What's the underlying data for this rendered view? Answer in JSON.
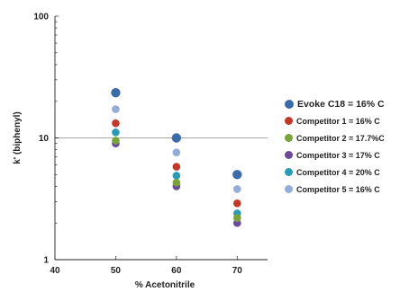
{
  "chart_data": {
    "type": "scatter",
    "xlabel": "% Acetonitrile",
    "ylabel": "k' (biphenyl)",
    "x_ticks": [
      "40",
      "50",
      "60",
      "70"
    ],
    "y_ticks": [
      "1",
      "10",
      "100"
    ],
    "xlim": [
      40,
      75
    ],
    "ylim": [
      1,
      100
    ],
    "y_scale": "log",
    "grid": "horizontal at 10",
    "legend_position": "right",
    "series": [
      {
        "name": "Evoke C18 = 16% C",
        "color": "#3c6ca8",
        "x": [
          50,
          60,
          70
        ],
        "y": [
          23.5,
          10.0,
          5.0
        ]
      },
      {
        "name": "Competitor 1 = 16% C",
        "color": "#c0392b",
        "x": [
          50,
          60,
          70
        ],
        "y": [
          13.2,
          5.8,
          2.9
        ]
      },
      {
        "name": "Competitor 2 = 17.7%C",
        "color": "#7aa23a",
        "x": [
          50,
          60,
          70
        ],
        "y": [
          9.5,
          4.3,
          2.2
        ]
      },
      {
        "name": "Competitor 3 = 17% C",
        "color": "#6b4a9a",
        "x": [
          50,
          60,
          70
        ],
        "y": [
          9.0,
          4.0,
          2.0
        ]
      },
      {
        "name": "Competitor 4 = 20% C",
        "color": "#2b9bb5",
        "x": [
          50,
          60,
          70
        ],
        "y": [
          11.1,
          4.9,
          2.4
        ]
      },
      {
        "name": "Competitor 5 = 16% C",
        "color": "#95acd8",
        "x": [
          50,
          60,
          70
        ],
        "y": [
          17.2,
          7.6,
          3.8
        ]
      }
    ]
  }
}
